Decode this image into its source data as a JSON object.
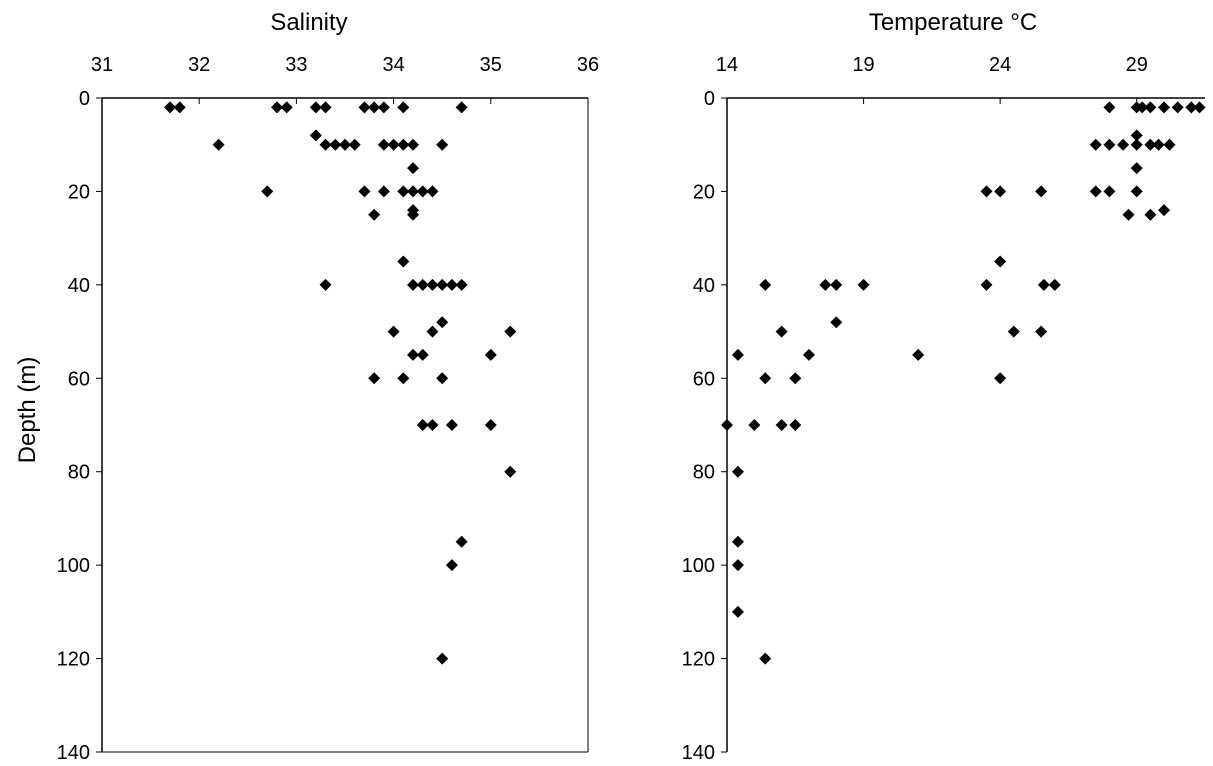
{
  "chart_data": [
    {
      "type": "scatter",
      "title": "Salinity",
      "ylabel": "Depth (m)",
      "xlim": [
        31,
        36
      ],
      "ylim": [
        0,
        140
      ],
      "x_ticks": [
        31,
        32,
        33,
        34,
        35,
        36
      ],
      "y_ticks": [
        0,
        20,
        40,
        60,
        80,
        100,
        120,
        140
      ],
      "x_axis_position": "top",
      "y_inverted": true,
      "grid": false,
      "marker": "diamond",
      "marker_color": "#000000",
      "series": [
        {
          "points": [
            {
              "x": 31.7,
              "y": 2
            },
            {
              "x": 31.8,
              "y": 2
            },
            {
              "x": 32.8,
              "y": 2
            },
            {
              "x": 32.9,
              "y": 2
            },
            {
              "x": 33.2,
              "y": 2
            },
            {
              "x": 33.3,
              "y": 2
            },
            {
              "x": 33.7,
              "y": 2
            },
            {
              "x": 33.8,
              "y": 2
            },
            {
              "x": 33.9,
              "y": 2
            },
            {
              "x": 34.1,
              "y": 2
            },
            {
              "x": 34.7,
              "y": 2
            },
            {
              "x": 33.2,
              "y": 8
            },
            {
              "x": 32.2,
              "y": 10
            },
            {
              "x": 33.3,
              "y": 10
            },
            {
              "x": 33.4,
              "y": 10
            },
            {
              "x": 33.5,
              "y": 10
            },
            {
              "x": 33.6,
              "y": 10
            },
            {
              "x": 33.9,
              "y": 10
            },
            {
              "x": 34.0,
              "y": 10
            },
            {
              "x": 34.1,
              "y": 10
            },
            {
              "x": 34.2,
              "y": 10
            },
            {
              "x": 34.5,
              "y": 10
            },
            {
              "x": 34.2,
              "y": 15
            },
            {
              "x": 32.7,
              "y": 20
            },
            {
              "x": 33.7,
              "y": 20
            },
            {
              "x": 33.9,
              "y": 20
            },
            {
              "x": 34.1,
              "y": 20
            },
            {
              "x": 34.2,
              "y": 20
            },
            {
              "x": 34.3,
              "y": 20
            },
            {
              "x": 34.4,
              "y": 20
            },
            {
              "x": 33.8,
              "y": 25
            },
            {
              "x": 34.2,
              "y": 24
            },
            {
              "x": 34.2,
              "y": 25
            },
            {
              "x": 34.1,
              "y": 35
            },
            {
              "x": 33.3,
              "y": 40
            },
            {
              "x": 34.2,
              "y": 40
            },
            {
              "x": 34.3,
              "y": 40
            },
            {
              "x": 34.4,
              "y": 40
            },
            {
              "x": 34.5,
              "y": 40
            },
            {
              "x": 34.6,
              "y": 40
            },
            {
              "x": 34.7,
              "y": 40
            },
            {
              "x": 34.5,
              "y": 48
            },
            {
              "x": 34.0,
              "y": 50
            },
            {
              "x": 34.4,
              "y": 50
            },
            {
              "x": 35.2,
              "y": 50
            },
            {
              "x": 34.2,
              "y": 55
            },
            {
              "x": 34.3,
              "y": 55
            },
            {
              "x": 35.0,
              "y": 55
            },
            {
              "x": 33.8,
              "y": 60
            },
            {
              "x": 34.1,
              "y": 60
            },
            {
              "x": 34.5,
              "y": 60
            },
            {
              "x": 34.3,
              "y": 70
            },
            {
              "x": 34.4,
              "y": 70
            },
            {
              "x": 34.6,
              "y": 70
            },
            {
              "x": 35.0,
              "y": 70
            },
            {
              "x": 35.2,
              "y": 80
            },
            {
              "x": 34.7,
              "y": 95
            },
            {
              "x": 34.6,
              "y": 100
            },
            {
              "x": 34.5,
              "y": 120
            }
          ]
        }
      ]
    },
    {
      "type": "scatter",
      "title": "Temperature °C",
      "xlim": [
        14,
        31.5
      ],
      "ylim": [
        0,
        140
      ],
      "x_ticks": [
        14,
        19,
        24,
        29
      ],
      "y_ticks": [
        0,
        20,
        40,
        60,
        80,
        100,
        120,
        140
      ],
      "x_axis_position": "top",
      "y_inverted": true,
      "grid": false,
      "marker": "diamond",
      "marker_color": "#000000",
      "series": [
        {
          "points": [
            {
              "x": 28.0,
              "y": 2
            },
            {
              "x": 29.0,
              "y": 2
            },
            {
              "x": 29.2,
              "y": 2
            },
            {
              "x": 29.5,
              "y": 2
            },
            {
              "x": 30.0,
              "y": 2
            },
            {
              "x": 30.5,
              "y": 2
            },
            {
              "x": 31.0,
              "y": 2
            },
            {
              "x": 31.3,
              "y": 2
            },
            {
              "x": 29.0,
              "y": 8
            },
            {
              "x": 27.5,
              "y": 10
            },
            {
              "x": 28.0,
              "y": 10
            },
            {
              "x": 28.5,
              "y": 10
            },
            {
              "x": 29.0,
              "y": 10
            },
            {
              "x": 29.5,
              "y": 10
            },
            {
              "x": 29.8,
              "y": 10
            },
            {
              "x": 30.2,
              "y": 10
            },
            {
              "x": 29.0,
              "y": 15
            },
            {
              "x": 27.5,
              "y": 20
            },
            {
              "x": 28.0,
              "y": 20
            },
            {
              "x": 29.0,
              "y": 20
            },
            {
              "x": 23.5,
              "y": 20
            },
            {
              "x": 24.0,
              "y": 20
            },
            {
              "x": 25.5,
              "y": 20
            },
            {
              "x": 28.7,
              "y": 25
            },
            {
              "x": 29.5,
              "y": 25
            },
            {
              "x": 30.0,
              "y": 24
            },
            {
              "x": 24.0,
              "y": 35
            },
            {
              "x": 15.4,
              "y": 40
            },
            {
              "x": 17.6,
              "y": 40
            },
            {
              "x": 18.0,
              "y": 40
            },
            {
              "x": 19.0,
              "y": 40
            },
            {
              "x": 23.5,
              "y": 40
            },
            {
              "x": 25.6,
              "y": 40
            },
            {
              "x": 26.0,
              "y": 40
            },
            {
              "x": 18.0,
              "y": 48
            },
            {
              "x": 16.0,
              "y": 50
            },
            {
              "x": 24.5,
              "y": 50
            },
            {
              "x": 25.5,
              "y": 50
            },
            {
              "x": 14.4,
              "y": 55
            },
            {
              "x": 17.0,
              "y": 55
            },
            {
              "x": 21.0,
              "y": 55
            },
            {
              "x": 15.4,
              "y": 60
            },
            {
              "x": 16.5,
              "y": 60
            },
            {
              "x": 24.0,
              "y": 60
            },
            {
              "x": 14.0,
              "y": 70
            },
            {
              "x": 15.0,
              "y": 70
            },
            {
              "x": 16.0,
              "y": 70
            },
            {
              "x": 16.5,
              "y": 70
            },
            {
              "x": 14.4,
              "y": 80
            },
            {
              "x": 14.4,
              "y": 95
            },
            {
              "x": 14.4,
              "y": 100
            },
            {
              "x": 14.4,
              "y": 110
            },
            {
              "x": 15.4,
              "y": 120
            }
          ]
        }
      ]
    }
  ]
}
